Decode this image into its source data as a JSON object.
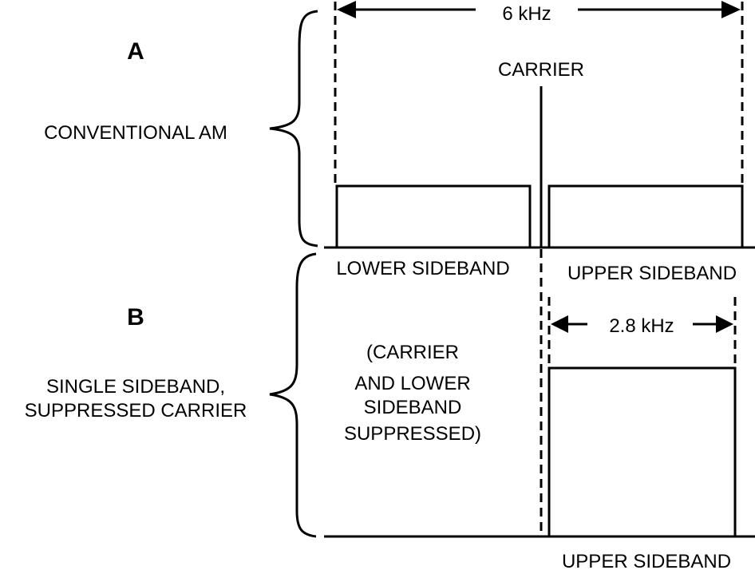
{
  "panel_a": {
    "letter": "A",
    "title": "CONVENTIONAL AM",
    "bandwidth_label": "6 kHz",
    "carrier_label": "CARRIER",
    "lower_sideband_label": "LOWER SIDEBAND",
    "upper_sideband_label": "UPPER SIDEBAND"
  },
  "panel_b": {
    "letter": "B",
    "title_line1": "SINGLE SIDEBAND,",
    "title_line2": "SUPPRESSED CARRIER",
    "bandwidth_label": "2.8 kHz",
    "note_lines": [
      "(CARRIER",
      "AND LOWER",
      "SIDEBAND",
      "SUPPRESSED)"
    ],
    "upper_sideband_label": "UPPER SIDEBAND"
  }
}
